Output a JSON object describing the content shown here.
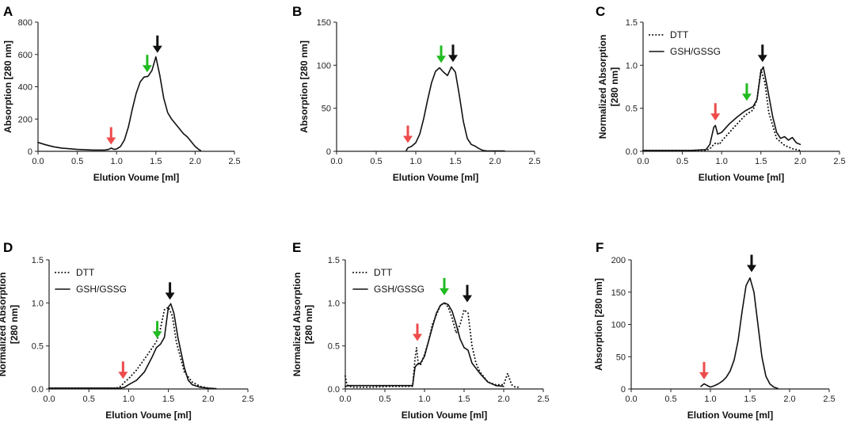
{
  "colors": {
    "red": "#ee4b4b",
    "green": "#22bb22",
    "black": "#111111"
  },
  "chart_data": [
    {
      "panel": "A",
      "type": "line",
      "xlabel": "Elution Voume [ml]",
      "ylabel": [
        "Absorption [280 nm]"
      ],
      "xlim": [
        0,
        2.5
      ],
      "ylim": [
        0,
        800
      ],
      "xticks": [
        0,
        0.5,
        1.0,
        1.5,
        2.0,
        2.5
      ],
      "xtick_labels": [
        "0.0",
        "0.5",
        "1.0",
        "1.5",
        "2.0",
        "2.5"
      ],
      "yticks": [
        0,
        200,
        400,
        600,
        800
      ],
      "ytick_labels": [
        "0",
        "200",
        "400",
        "600",
        "800"
      ],
      "legend": [],
      "series": [
        {
          "name": "Absorption",
          "style": "solid",
          "x": [
            0,
            0.1,
            0.2,
            0.3,
            0.5,
            0.7,
            0.85,
            0.9,
            0.93,
            0.97,
            1.0,
            1.05,
            1.1,
            1.15,
            1.2,
            1.25,
            1.3,
            1.35,
            1.4,
            1.45,
            1.5,
            1.55,
            1.6,
            1.65,
            1.7,
            1.75,
            1.8,
            1.85,
            1.9,
            1.95,
            2.0,
            2.05,
            2.07
          ],
          "y": [
            55,
            40,
            28,
            20,
            12,
            8,
            8,
            12,
            20,
            12,
            14,
            30,
            70,
            150,
            260,
            360,
            430,
            460,
            465,
            500,
            585,
            470,
            330,
            240,
            200,
            170,
            140,
            110,
            90,
            60,
            30,
            10,
            5
          ]
        }
      ],
      "arrows": [
        {
          "color": "red",
          "x": 0.93,
          "y": 22
        },
        {
          "color": "green",
          "x": 1.39,
          "y": 470
        },
        {
          "color": "black",
          "x": 1.52,
          "y": 590
        }
      ]
    },
    {
      "panel": "B",
      "type": "line",
      "xlabel": "Elution Voume [ml]",
      "ylabel": [
        "Absorption [280 nm]"
      ],
      "xlim": [
        0,
        2.5
      ],
      "ylim": [
        0,
        150
      ],
      "xticks": [
        0,
        0.5,
        1.0,
        1.5,
        2.0,
        2.5
      ],
      "xtick_labels": [
        "0.0",
        "0.5",
        "1.0",
        "1.5",
        "2.0",
        "2.5"
      ],
      "yticks": [
        0,
        50,
        100,
        150
      ],
      "ytick_labels": [
        "0",
        "50",
        "100",
        "150"
      ],
      "legend": [],
      "series": [
        {
          "name": "Absorption",
          "style": "solid",
          "x": [
            0.88,
            0.9,
            0.95,
            1.0,
            1.05,
            1.1,
            1.15,
            1.2,
            1.25,
            1.3,
            1.35,
            1.4,
            1.45,
            1.5,
            1.55,
            1.6,
            1.65,
            1.7,
            1.75,
            1.8,
            1.85,
            1.9,
            2.0,
            2.1,
            2.12
          ],
          "y": [
            1,
            4,
            6,
            10,
            20,
            38,
            60,
            80,
            93,
            97,
            92,
            88,
            98,
            92,
            65,
            35,
            15,
            8,
            6,
            3,
            1,
            0.5,
            0.5,
            0.5,
            0.5
          ]
        }
      ],
      "arrows": [
        {
          "color": "red",
          "x": 0.9,
          "y": 6
        },
        {
          "color": "green",
          "x": 1.32,
          "y": 99
        },
        {
          "color": "black",
          "x": 1.47,
          "y": 100
        }
      ]
    },
    {
      "panel": "C",
      "type": "line",
      "xlabel": "Elution Voume [ml]",
      "ylabel": [
        "Normalized Absorption",
        "[280 nm]"
      ],
      "xlim": [
        0,
        2.5
      ],
      "ylim": [
        0,
        1.5
      ],
      "xticks": [
        0,
        0.5,
        1.0,
        1.5,
        2.0,
        2.5
      ],
      "xtick_labels": [
        "0.0",
        "0.5",
        "1.0",
        "1.5",
        "2.0",
        "2.5"
      ],
      "yticks": [
        0,
        0.5,
        1.0,
        1.5
      ],
      "ytick_labels": [
        "0.0",
        "0.5",
        "1.0",
        "1.5"
      ],
      "legend": [
        "DTT",
        "GSH/GSSG"
      ],
      "series": [
        {
          "name": "DTT",
          "style": "dotted",
          "x": [
            0,
            0.3,
            0.6,
            0.8,
            0.85,
            0.9,
            0.93,
            0.97,
            1.0,
            1.1,
            1.2,
            1.3,
            1.4,
            1.45,
            1.5,
            1.55,
            1.6,
            1.7,
            1.8,
            1.9,
            2.0
          ],
          "y": [
            0.01,
            0.01,
            0.01,
            0.01,
            0.03,
            0.08,
            0.1,
            0.08,
            0.12,
            0.22,
            0.32,
            0.42,
            0.48,
            0.6,
            0.95,
            0.8,
            0.45,
            0.15,
            0.07,
            0.03,
            0.01
          ]
        },
        {
          "name": "GSH/GSSG",
          "style": "solid",
          "x": [
            0,
            0.3,
            0.6,
            0.8,
            0.85,
            0.9,
            0.92,
            0.95,
            1.0,
            1.1,
            1.2,
            1.3,
            1.4,
            1.45,
            1.5,
            1.53,
            1.58,
            1.65,
            1.7,
            1.75,
            1.8,
            1.85,
            1.9,
            1.95,
            2.0
          ],
          "y": [
            0.01,
            0.01,
            0.01,
            0.02,
            0.08,
            0.28,
            0.3,
            0.2,
            0.22,
            0.32,
            0.4,
            0.47,
            0.52,
            0.6,
            0.93,
            0.98,
            0.75,
            0.4,
            0.22,
            0.15,
            0.17,
            0.13,
            0.16,
            0.1,
            0.08
          ]
        }
      ],
      "arrows": [
        {
          "color": "red",
          "x": 0.92,
          "y": 0.32
        },
        {
          "color": "green",
          "x": 1.32,
          "y": 0.55
        },
        {
          "color": "black",
          "x": 1.52,
          "y": 1.0
        }
      ]
    },
    {
      "panel": "D",
      "type": "line",
      "xlabel": "Elution Voume [ml]",
      "ylabel": [
        "Normalized Absorption",
        "[280 nm]"
      ],
      "xlim": [
        0,
        2.5
      ],
      "ylim": [
        0,
        1.5
      ],
      "xticks": [
        0,
        0.5,
        1.0,
        1.5,
        2.0,
        2.5
      ],
      "xtick_labels": [
        "0.0",
        "0.5",
        "1.0",
        "1.5",
        "2.0",
        "2.5"
      ],
      "yticks": [
        0,
        0.5,
        1.0,
        1.5
      ],
      "ytick_labels": [
        "0.0",
        "0.5",
        "1.0",
        "1.5"
      ],
      "legend": [
        "DTT",
        "GSH/GSSG"
      ],
      "series": [
        {
          "name": "DTT",
          "style": "dotted",
          "x": [
            0,
            0.5,
            0.85,
            0.9,
            0.95,
            1.0,
            1.1,
            1.2,
            1.3,
            1.35,
            1.4,
            1.45,
            1.5,
            1.55,
            1.6,
            1.7,
            1.8,
            1.9,
            2.0
          ],
          "y": [
            0.01,
            0.01,
            0.01,
            0.03,
            0.08,
            0.12,
            0.22,
            0.35,
            0.48,
            0.55,
            0.7,
            0.92,
            0.95,
            0.85,
            0.55,
            0.2,
            0.08,
            0.03,
            0.01
          ]
        },
        {
          "name": "GSH/GSSG",
          "style": "solid",
          "x": [
            0,
            0.5,
            0.9,
            0.95,
            1.0,
            1.1,
            1.2,
            1.3,
            1.35,
            1.4,
            1.45,
            1.5,
            1.53,
            1.57,
            1.62,
            1.7,
            1.75,
            1.8,
            1.9,
            2.0,
            2.1
          ],
          "y": [
            0.01,
            0.01,
            0.01,
            0.02,
            0.05,
            0.1,
            0.2,
            0.38,
            0.48,
            0.52,
            0.6,
            0.95,
            0.99,
            0.88,
            0.6,
            0.25,
            0.1,
            0.05,
            0.02,
            0.01,
            0.005
          ]
        }
      ],
      "arrows": [
        {
          "color": "red",
          "x": 0.93,
          "y": 0.08
        },
        {
          "color": "green",
          "x": 1.36,
          "y": 0.55
        },
        {
          "color": "black",
          "x": 1.52,
          "y": 1.0
        }
      ]
    },
    {
      "panel": "E",
      "type": "line",
      "xlabel": "Elution Voume [ml]",
      "ylabel": [
        "Normalized Absorption",
        "[280 nm]"
      ],
      "xlim": [
        0,
        2.5
      ],
      "ylim": [
        0,
        1.5
      ],
      "xticks": [
        0,
        0.5,
        1.0,
        1.5,
        2.0,
        2.5
      ],
      "xtick_labels": [
        "0.0",
        "0.5",
        "1.0",
        "1.5",
        "2.0",
        "2.5"
      ],
      "yticks": [
        0,
        0.5,
        1.0,
        1.5
      ],
      "ytick_labels": [
        "0.0",
        "0.5",
        "1.0",
        "1.5"
      ],
      "legend": [
        "DTT",
        "GSH/GSSG"
      ],
      "series": [
        {
          "name": "DTT",
          "style": "dotted",
          "x": [
            0,
            0.02,
            0.05,
            0.1,
            0.3,
            0.6,
            0.85,
            0.88,
            0.9,
            0.92,
            0.95,
            1.0,
            1.05,
            1.1,
            1.2,
            1.25,
            1.3,
            1.35,
            1.4,
            1.45,
            1.5,
            1.55,
            1.6,
            1.65,
            1.7,
            1.8,
            1.9,
            2.0,
            2.05,
            2.1,
            2.15,
            2.2
          ],
          "y": [
            0.15,
            0.05,
            0.03,
            0.02,
            0.02,
            0.03,
            0.03,
            0.35,
            0.48,
            0.3,
            0.28,
            0.4,
            0.55,
            0.75,
            0.97,
            1.0,
            0.95,
            0.82,
            0.65,
            0.75,
            0.92,
            0.88,
            0.5,
            0.3,
            0.2,
            0.08,
            0.05,
            0.05,
            0.18,
            0.05,
            0.02,
            0.02
          ]
        },
        {
          "name": "GSH/GSSG",
          "style": "solid",
          "x": [
            0,
            0.05,
            0.1,
            0.3,
            0.6,
            0.85,
            0.88,
            0.9,
            0.95,
            1.0,
            1.05,
            1.1,
            1.15,
            1.2,
            1.25,
            1.3,
            1.35,
            1.4,
            1.45,
            1.5,
            1.55,
            1.6,
            1.7,
            1.8,
            1.9,
            2.0
          ],
          "y": [
            0.03,
            0.04,
            0.04,
            0.04,
            0.04,
            0.04,
            0.25,
            0.28,
            0.3,
            0.38,
            0.55,
            0.72,
            0.88,
            0.97,
            1.0,
            0.98,
            0.9,
            0.75,
            0.58,
            0.48,
            0.45,
            0.3,
            0.18,
            0.08,
            0.04,
            0.03
          ]
        }
      ],
      "arrows": [
        {
          "color": "red",
          "x": 0.91,
          "y": 0.52
        },
        {
          "color": "green",
          "x": 1.25,
          "y": 1.05
        },
        {
          "color": "black",
          "x": 1.54,
          "y": 0.97
        }
      ]
    },
    {
      "panel": "F",
      "type": "line",
      "xlabel": "Elution Voume [ml]",
      "ylabel": [
        "Absorption [280 nm]"
      ],
      "xlim": [
        0,
        2.5
      ],
      "ylim": [
        0,
        200
      ],
      "xticks": [
        0,
        0.5,
        1.0,
        1.5,
        2.0,
        2.5
      ],
      "xtick_labels": [
        "0.0",
        "0.5",
        "1.0",
        "1.5",
        "2.0",
        "2.5"
      ],
      "yticks": [
        0,
        50,
        100,
        150,
        200
      ],
      "ytick_labels": [
        "0",
        "50",
        "100",
        "150",
        "200"
      ],
      "legend": [],
      "series": [
        {
          "name": "Absorption",
          "style": "solid",
          "x": [
            0.88,
            0.92,
            0.95,
            1.0,
            1.05,
            1.1,
            1.15,
            1.2,
            1.25,
            1.3,
            1.35,
            1.4,
            1.45,
            1.5,
            1.55,
            1.6,
            1.65,
            1.7,
            1.75,
            1.8,
            1.85
          ],
          "y": [
            4,
            8,
            6,
            3,
            5,
            8,
            12,
            18,
            28,
            45,
            75,
            120,
            160,
            172,
            150,
            100,
            50,
            20,
            8,
            3,
            1
          ]
        }
      ],
      "arrows": [
        {
          "color": "red",
          "x": 0.92,
          "y": 10
        },
        {
          "color": "black",
          "x": 1.52,
          "y": 176
        }
      ]
    }
  ]
}
